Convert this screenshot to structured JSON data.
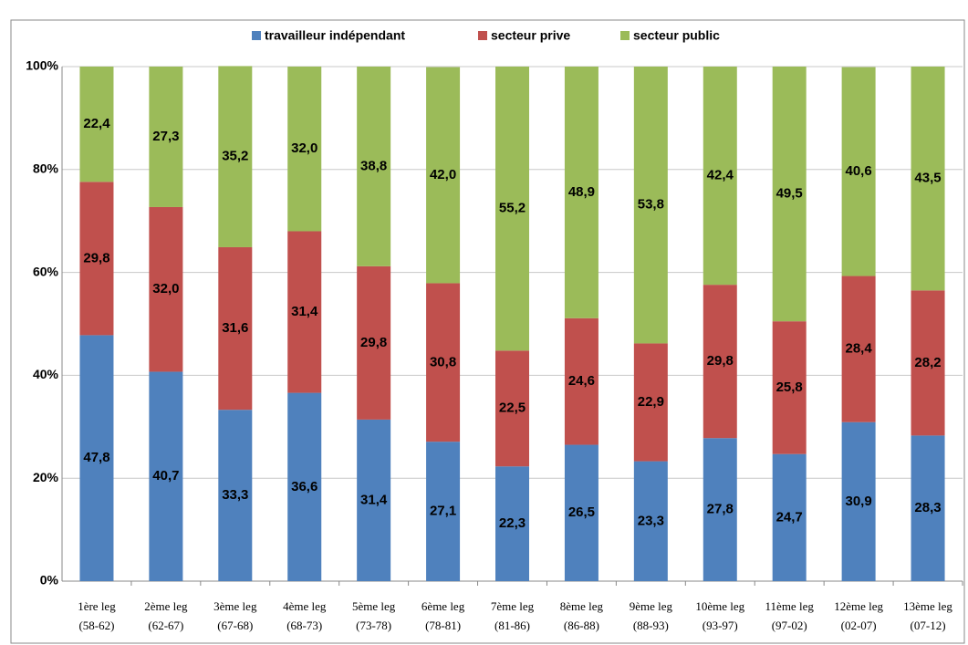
{
  "chart_data": {
    "type": "stacked_bar",
    "categories": [
      [
        "1ère leg",
        "(58-62)"
      ],
      [
        "2ème leg",
        "(62-67)"
      ],
      [
        "3ème leg",
        "(67-68)"
      ],
      [
        "4ème leg",
        "(68-73)"
      ],
      [
        "5ème leg",
        "(73-78)"
      ],
      [
        "6ème leg",
        "(78-81)"
      ],
      [
        "7ème leg",
        "(81-86)"
      ],
      [
        "8ème leg",
        "(86-88)"
      ],
      [
        "9ème leg",
        "(88-93)"
      ],
      [
        "10ème leg",
        "(93-97)"
      ],
      [
        "11ème leg",
        "(97-02)"
      ],
      [
        "12ème leg",
        "(02-07)"
      ],
      [
        "13ème leg",
        "(07-12)"
      ]
    ],
    "series": [
      {
        "name": "travailleur indépendant",
        "color": "#4f81bd",
        "values": [
          47.8,
          40.7,
          33.3,
          36.6,
          31.4,
          27.1,
          22.3,
          26.5,
          23.3,
          27.8,
          24.7,
          30.9,
          28.3
        ],
        "value_labels": [
          "47,8",
          "40,7",
          "33,3",
          "36,6",
          "31,4",
          "27,1",
          "22,3",
          "26,5",
          "23,3",
          "27,8",
          "24,7",
          "30,9",
          "28,3"
        ]
      },
      {
        "name": "secteur prive",
        "color": "#c0504d",
        "values": [
          29.8,
          32.0,
          31.6,
          31.4,
          29.8,
          30.8,
          22.5,
          24.6,
          22.9,
          29.8,
          25.8,
          28.4,
          28.2
        ],
        "value_labels": [
          "29,8",
          "32,0",
          "31,6",
          "31,4",
          "29,8",
          "30,8",
          "22,5",
          "24,6",
          "22,9",
          "29,8",
          "25,8",
          "28,4",
          "28,2"
        ]
      },
      {
        "name": "secteur public",
        "color": "#9bbb59",
        "values": [
          22.4,
          27.3,
          35.2,
          32.0,
          38.8,
          42.0,
          55.2,
          48.9,
          53.8,
          42.4,
          49.5,
          40.6,
          43.5
        ],
        "value_labels": [
          "22,4",
          "27,3",
          "35,2",
          "32,0",
          "38,8",
          "42,0",
          "55,2",
          "48,9",
          "53,8",
          "42,4",
          "49,5",
          "40,6",
          "43,5"
        ]
      }
    ],
    "ylim": [
      0,
      100
    ],
    "yticks": [
      {
        "value": 0,
        "label": "0%"
      },
      {
        "value": 20,
        "label": "20%"
      },
      {
        "value": 40,
        "label": "40%"
      },
      {
        "value": 60,
        "label": "60%"
      },
      {
        "value": 80,
        "label": "80%"
      },
      {
        "value": 100,
        "label": "100%"
      }
    ],
    "grid": true,
    "legend": "top"
  }
}
